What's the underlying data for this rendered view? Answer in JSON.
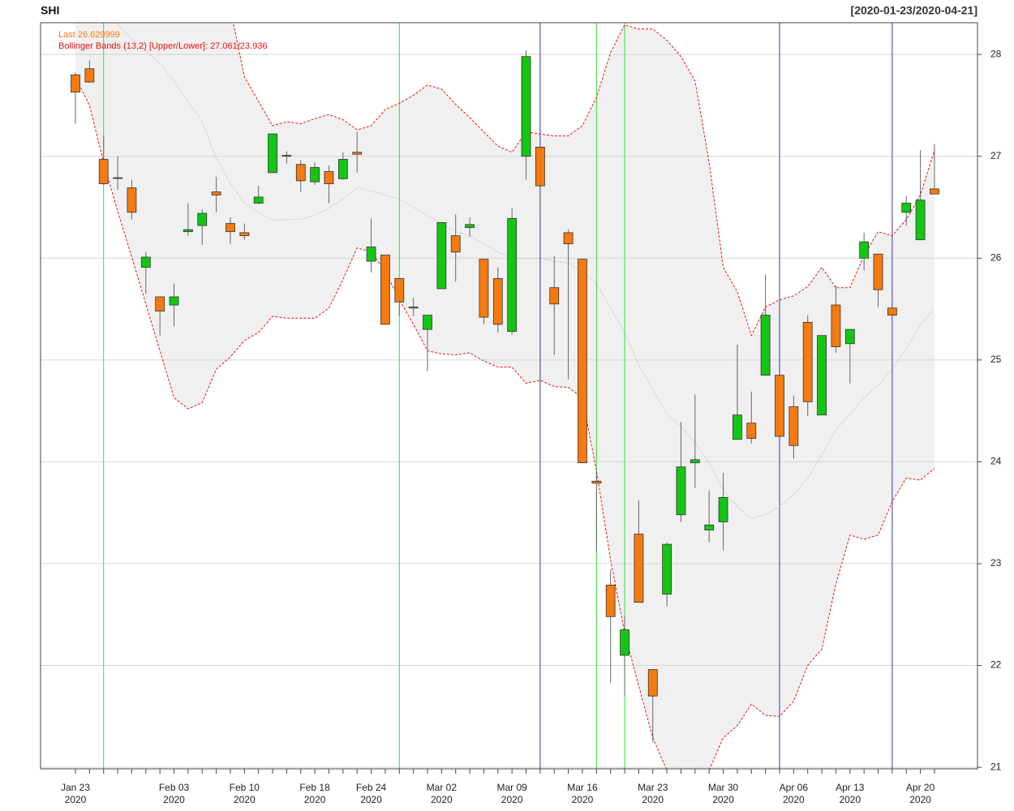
{
  "chart_data": {
    "type": "candlestick",
    "title": "SHI",
    "date_range": "[2020-01-23/2020-04-21]",
    "last_label": "Last 26.629999",
    "bands_label": "Bollinger Bands (13,2) [Upper/Lower]: 27.061/23.936",
    "categories": [
      "Jan 23\n2020",
      null,
      null,
      null,
      null,
      null,
      null,
      "Feb 03\n2020",
      null,
      null,
      null,
      null,
      "Feb 10\n2020",
      null,
      null,
      null,
      null,
      "Feb 18\n2020",
      null,
      null,
      null,
      "Feb 24\n2020",
      null,
      null,
      null,
      null,
      "Mar 02\n2020",
      null,
      null,
      null,
      null,
      "Mar 09\n2020",
      null,
      null,
      null,
      null,
      "Mar 16\n2020",
      null,
      null,
      null,
      null,
      "Mar 23\n2020",
      null,
      null,
      null,
      null,
      "Mar 30\n2020",
      null,
      null,
      null,
      null,
      "Apr 06\n2020",
      null,
      null,
      null,
      "Apr 13\n2020",
      null,
      null,
      null,
      null,
      "Apr 20\n2020",
      null
    ],
    "open": [
      27.8,
      27.86,
      26.97,
      26.79,
      26.69,
      25.91,
      25.62,
      25.54,
      26.26,
      26.32,
      26.65,
      26.34,
      26.25,
      26.54,
      26.84,
      27.01,
      26.92,
      26.75,
      26.85,
      26.78,
      27.04,
      25.97,
      26.03,
      25.8,
      25.51,
      25.3,
      25.7,
      26.22,
      26.3,
      25.99,
      25.8,
      25.28,
      27.0,
      27.09,
      25.71,
      26.25,
      25.99,
      23.81,
      22.79,
      22.1,
      23.29,
      21.96,
      22.7,
      23.48,
      23.99,
      23.33,
      23.41,
      24.22,
      24.38,
      24.85,
      24.85,
      24.54,
      25.37,
      24.46,
      25.54,
      25.16,
      26.0,
      26.04,
      25.51,
      26.45,
      26.18,
      26.68
    ],
    "high": [
      27.82,
      27.94,
      27.2,
      27.0,
      26.77,
      26.06,
      25.62,
      25.75,
      26.54,
      26.48,
      26.8,
      26.4,
      26.34,
      26.71,
      27.22,
      27.05,
      26.96,
      26.94,
      26.91,
      27.04,
      27.24,
      26.39,
      26.03,
      25.8,
      25.61,
      25.44,
      26.35,
      26.43,
      26.4,
      25.99,
      25.91,
      26.49,
      28.04,
      27.09,
      26.02,
      26.28,
      25.99,
      23.91,
      22.94,
      22.48,
      23.62,
      21.96,
      23.21,
      24.39,
      24.66,
      23.72,
      23.89,
      25.15,
      24.69,
      25.84,
      24.85,
      24.65,
      25.44,
      25.24,
      25.73,
      25.3,
      26.25,
      26.04,
      25.51,
      26.61,
      27.06,
      27.12
    ],
    "low": [
      27.32,
      27.72,
      26.72,
      26.67,
      26.38,
      25.65,
      25.24,
      25.33,
      26.22,
      26.13,
      26.45,
      26.14,
      26.18,
      26.53,
      26.84,
      26.93,
      26.65,
      26.72,
      26.54,
      26.77,
      26.84,
      25.86,
      25.35,
      25.43,
      25.43,
      24.89,
      25.7,
      25.77,
      26.21,
      25.35,
      25.27,
      25.25,
      26.77,
      26.45,
      25.05,
      24.81,
      23.99,
      23.12,
      21.83,
      21.7,
      22.62,
      21.25,
      22.58,
      23.41,
      23.74,
      23.21,
      23.13,
      24.22,
      24.18,
      24.85,
      24.25,
      24.03,
      24.45,
      24.46,
      25.07,
      24.77,
      25.88,
      25.52,
      25.43,
      26.32,
      26.18,
      26.63
    ],
    "close": [
      27.63,
      27.73,
      26.73,
      26.79,
      26.45,
      26.01,
      25.48,
      25.62,
      26.28,
      26.44,
      26.62,
      26.26,
      26.22,
      26.6,
      27.22,
      27.0,
      26.76,
      26.89,
      26.73,
      26.97,
      27.02,
      26.11,
      25.35,
      25.57,
      25.52,
      25.44,
      26.35,
      26.06,
      26.33,
      25.42,
      25.35,
      26.39,
      27.98,
      26.71,
      25.55,
      26.14,
      23.99,
      23.79,
      22.48,
      22.35,
      22.62,
      21.7,
      23.19,
      23.95,
      24.02,
      23.38,
      23.65,
      24.46,
      24.23,
      25.44,
      24.25,
      24.16,
      24.59,
      25.24,
      25.13,
      25.3,
      26.16,
      25.69,
      25.44,
      26.54,
      26.57,
      26.63
    ],
    "up_color": "#13c613",
    "down_color": "#f57a10",
    "bands": {
      "upper": [
        29.62,
        29.7,
        29.96,
        30.14,
        30.29,
        30.53,
        30.73,
        30.85,
        30.56,
        30.1,
        29.05,
        28.45,
        27.78,
        27.54,
        27.3,
        27.34,
        27.32,
        27.37,
        27.41,
        27.36,
        27.26,
        27.3,
        27.46,
        27.52,
        27.6,
        27.7,
        27.66,
        27.51,
        27.38,
        27.24,
        27.1,
        27.04,
        27.24,
        27.22,
        27.2,
        27.2,
        27.3,
        27.58,
        28.02,
        28.29,
        28.25,
        28.25,
        28.14,
        27.98,
        27.74,
        26.94,
        25.91,
        25.67,
        25.24,
        25.52,
        25.59,
        25.63,
        25.72,
        25.91,
        25.71,
        25.71,
        26.03,
        26.26,
        26.22,
        26.38,
        26.62,
        27.061
      ],
      "middle": [
        28.7,
        28.6,
        28.45,
        28.3,
        28.15,
        28.04,
        27.91,
        27.74,
        27.54,
        27.34,
        26.98,
        26.74,
        26.54,
        26.45,
        26.37,
        26.38,
        26.38,
        26.42,
        26.49,
        26.58,
        26.69,
        26.66,
        26.62,
        26.58,
        26.5,
        26.42,
        26.34,
        26.26,
        26.22,
        26.14,
        26.06,
        26.0,
        25.99,
        26.0,
        25.97,
        25.95,
        25.87,
        25.75,
        25.51,
        25.27,
        24.95,
        24.71,
        24.47,
        24.35,
        24.19,
        23.99,
        23.72,
        23.56,
        23.44,
        23.48,
        23.56,
        23.68,
        23.84,
        24.07,
        24.31,
        24.47,
        24.63,
        24.75,
        24.91,
        25.11,
        25.35,
        25.5
      ],
      "lower": [
        27.78,
        27.5,
        26.94,
        26.46,
        26.01,
        25.55,
        25.09,
        24.63,
        24.52,
        24.58,
        24.91,
        25.03,
        25.19,
        25.27,
        25.43,
        25.41,
        25.41,
        25.41,
        25.51,
        25.79,
        26.1,
        26.06,
        25.87,
        25.59,
        25.35,
        25.09,
        25.06,
        25.05,
        25.07,
        24.99,
        24.93,
        24.93,
        24.77,
        24.8,
        24.74,
        24.73,
        24.63,
        23.91,
        23.04,
        22.32,
        21.8,
        21.29,
        20.97,
        20.81,
        20.81,
        20.97,
        21.29,
        21.41,
        21.62,
        21.51,
        21.5,
        21.65,
        22.0,
        22.16,
        22.8,
        23.28,
        23.24,
        23.28,
        23.61,
        23.84,
        23.82,
        23.936
      ],
      "color": "#ee1111",
      "fill": "#f0f0f0",
      "middle_color": "#aaaaaa"
    },
    "vlines": [
      {
        "x": 2,
        "color": "#33dd33"
      },
      {
        "x": 23,
        "color": "#33dd33"
      },
      {
        "x": 37,
        "color": "#33dd33"
      },
      {
        "x": 39,
        "color": "#33dd33"
      },
      {
        "x": 33,
        "color": "#3333aa"
      },
      {
        "x": 50,
        "color": "#3333aa"
      },
      {
        "x": 58,
        "color": "#3333aa"
      }
    ],
    "ylim": [
      20.985,
      28.312
    ],
    "yticks": [
      21,
      22,
      23,
      24,
      25,
      26,
      27,
      28
    ],
    "grid": true
  }
}
